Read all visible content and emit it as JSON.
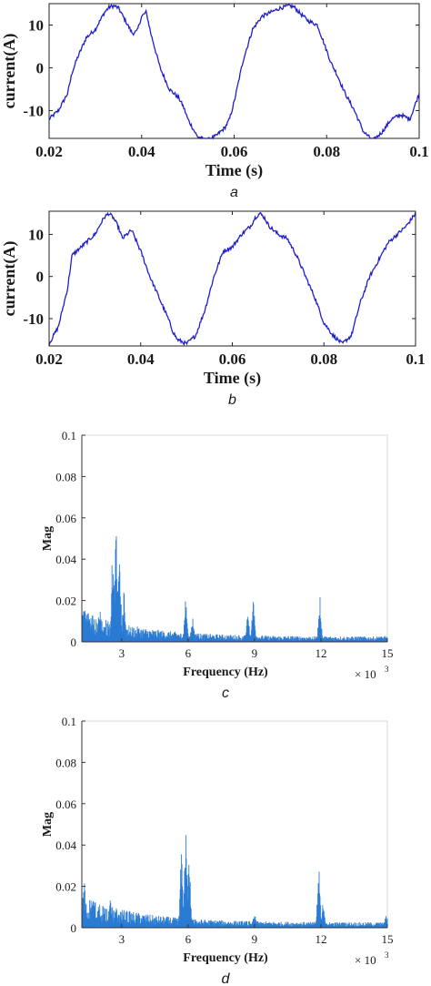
{
  "chart_data": [
    {
      "id": "a",
      "type": "line",
      "panel_label": "a",
      "xlabel": "Time (s)",
      "ylabel": "current(A)",
      "xlim": [
        0.02,
        0.1
      ],
      "ylim": [
        -16.5,
        15
      ],
      "xticks": [
        0.02,
        0.04,
        0.06,
        0.08,
        0.1
      ],
      "xtick_labels": [
        "0.02",
        "0.04",
        "0.06",
        "0.08",
        "0.1"
      ],
      "yticks": [
        -10,
        0,
        10
      ],
      "ytick_labels": [
        "-10",
        "0",
        "10"
      ],
      "line_color": "#1f1fcc",
      "series": [
        {
          "x": [
            0.02,
            0.022,
            0.024,
            0.025,
            0.026,
            0.028,
            0.03,
            0.031,
            0.032,
            0.033,
            0.034,
            0.035,
            0.036,
            0.037,
            0.038,
            0.039,
            0.04,
            0.041,
            0.042,
            0.044,
            0.046,
            0.048,
            0.049,
            0.05,
            0.052,
            0.054,
            0.056,
            0.058,
            0.059,
            0.06,
            0.062,
            0.064,
            0.066,
            0.068,
            0.07,
            0.072,
            0.073,
            0.074,
            0.075,
            0.076,
            0.078,
            0.08,
            0.081,
            0.082,
            0.084,
            0.086,
            0.088,
            0.09,
            0.092,
            0.094,
            0.096,
            0.098,
            0.1
          ],
          "y": [
            -12,
            -10,
            -6,
            -1,
            2,
            7,
            9,
            11,
            13,
            14.2,
            14.5,
            14,
            12,
            10,
            8,
            8.5,
            12,
            13,
            8,
            0,
            -5,
            -7,
            -9,
            -12,
            -16,
            -17,
            -16,
            -14,
            -12,
            -8,
            2,
            9,
            12,
            13,
            14,
            14.5,
            14.2,
            13,
            12,
            11,
            10,
            4,
            1,
            -1,
            -6,
            -10,
            -15,
            -17,
            -15,
            -12,
            -11,
            -12,
            -6
          ]
        }
      ]
    },
    {
      "id": "b",
      "type": "line",
      "panel_label": "b",
      "xlabel": "Time (s)",
      "ylabel": "current(A)",
      "xlim": [
        0.02,
        0.1
      ],
      "ylim": [
        -16.5,
        15.5
      ],
      "xticks": [
        0.02,
        0.04,
        0.06,
        0.08,
        0.1
      ],
      "xtick_labels": [
        "0.02",
        "0.04",
        "0.06",
        "0.08",
        "0.1"
      ],
      "yticks": [
        -10,
        0,
        10
      ],
      "ytick_labels": [
        "-10",
        "0",
        "10"
      ],
      "line_color": "#1f1fcc",
      "series": [
        {
          "x": [
            0.02,
            0.022,
            0.024,
            0.025,
            0.026,
            0.028,
            0.03,
            0.031,
            0.032,
            0.033,
            0.034,
            0.035,
            0.036,
            0.037,
            0.038,
            0.04,
            0.042,
            0.044,
            0.046,
            0.047,
            0.048,
            0.05,
            0.052,
            0.054,
            0.056,
            0.058,
            0.06,
            0.062,
            0.064,
            0.065,
            0.066,
            0.067,
            0.068,
            0.07,
            0.072,
            0.074,
            0.076,
            0.078,
            0.08,
            0.082,
            0.084,
            0.086,
            0.088,
            0.09,
            0.092,
            0.094,
            0.096,
            0.098,
            0.1
          ],
          "y": [
            -16,
            -12,
            -3,
            5,
            6,
            8,
            10,
            12,
            14,
            15,
            14,
            12,
            9,
            10,
            11,
            6,
            0,
            -5,
            -10,
            -13,
            -15,
            -16,
            -14,
            -8,
            0,
            6,
            7,
            10,
            12,
            14,
            15,
            14,
            12,
            10,
            9,
            5,
            0,
            -5,
            -11,
            -14,
            -16,
            -14,
            -6,
            0,
            4,
            8,
            10,
            12,
            15
          ]
        }
      ]
    },
    {
      "id": "c",
      "type": "bar",
      "panel_label": "c",
      "xlabel": "Frequency (Hz)",
      "ylabel": "Mag",
      "x_multiplier": "× 10",
      "x_multiplier_exp": "3",
      "xlim": [
        1.2,
        15
      ],
      "ylim": [
        0,
        0.1
      ],
      "xticks": [
        3,
        6,
        9,
        12,
        15
      ],
      "xtick_labels": [
        "3",
        "6",
        "9",
        "12",
        "15"
      ],
      "yticks": [
        0,
        0.02,
        0.04,
        0.06,
        0.08,
        0.1
      ],
      "ytick_labels": [
        "0",
        "0.02",
        "0.04",
        "0.06",
        "0.08",
        "0.1"
      ],
      "bar_color": "#2a7bd4",
      "peaks": [
        {
          "x": 1.3,
          "y": 0.022
        },
        {
          "x": 1.5,
          "y": 0.019
        },
        {
          "x": 2.0,
          "y": 0.017
        },
        {
          "x": 2.6,
          "y": 0.047
        },
        {
          "x": 2.75,
          "y": 0.054
        },
        {
          "x": 2.9,
          "y": 0.044
        },
        {
          "x": 3.1,
          "y": 0.024
        },
        {
          "x": 5.9,
          "y": 0.021
        },
        {
          "x": 6.2,
          "y": 0.013
        },
        {
          "x": 8.7,
          "y": 0.014
        },
        {
          "x": 8.95,
          "y": 0.021
        },
        {
          "x": 11.95,
          "y": 0.022
        },
        {
          "x": 14.9,
          "y": 0.003
        }
      ]
    },
    {
      "id": "d",
      "type": "bar",
      "panel_label": "d",
      "xlabel": "Frequency (Hz)",
      "ylabel": "Mag",
      "x_multiplier": "× 10",
      "x_multiplier_exp": "3",
      "xlim": [
        1.2,
        15
      ],
      "ylim": [
        0,
        0.1
      ],
      "xticks": [
        3,
        6,
        9,
        12,
        15
      ],
      "xtick_labels": [
        "3",
        "6",
        "9",
        "12",
        "15"
      ],
      "yticks": [
        0,
        0.02,
        0.04,
        0.06,
        0.08,
        0.1
      ],
      "ytick_labels": [
        "0",
        "0.02",
        "0.04",
        "0.06",
        "0.08",
        "0.1"
      ],
      "bar_color": "#2a7bd4",
      "peaks": [
        {
          "x": 1.3,
          "y": 0.024
        },
        {
          "x": 1.7,
          "y": 0.015
        },
        {
          "x": 2.5,
          "y": 0.014
        },
        {
          "x": 5.7,
          "y": 0.036
        },
        {
          "x": 5.9,
          "y": 0.049
        },
        {
          "x": 6.05,
          "y": 0.033
        },
        {
          "x": 9.0,
          "y": 0.007
        },
        {
          "x": 11.9,
          "y": 0.029
        },
        {
          "x": 12.1,
          "y": 0.012
        },
        {
          "x": 14.95,
          "y": 0.007
        }
      ]
    }
  ]
}
